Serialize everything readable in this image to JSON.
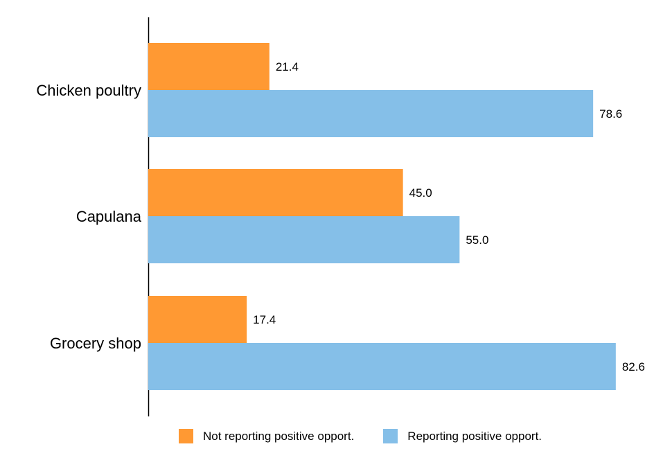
{
  "chart_data": {
    "type": "bar",
    "orientation": "horizontal",
    "categories": [
      "Chicken poultry",
      "Capulana",
      "Grocery shop"
    ],
    "series": [
      {
        "name": "Not reporting positive opport.",
        "values": [
          21.4,
          45.0,
          17.4
        ],
        "color": "#FF9933"
      },
      {
        "name": "Reporting positive opport.",
        "values": [
          78.6,
          55.0,
          82.6
        ],
        "color": "#85BFE8"
      }
    ],
    "value_labels": [
      [
        "21.4",
        "45.0",
        "17.4"
      ],
      [
        "78.6",
        "55.0",
        "82.6"
      ]
    ],
    "title": "",
    "xlabel": "",
    "ylabel": "",
    "xlim": [
      0,
      86
    ],
    "grid": false,
    "legend_position": "bottom"
  }
}
